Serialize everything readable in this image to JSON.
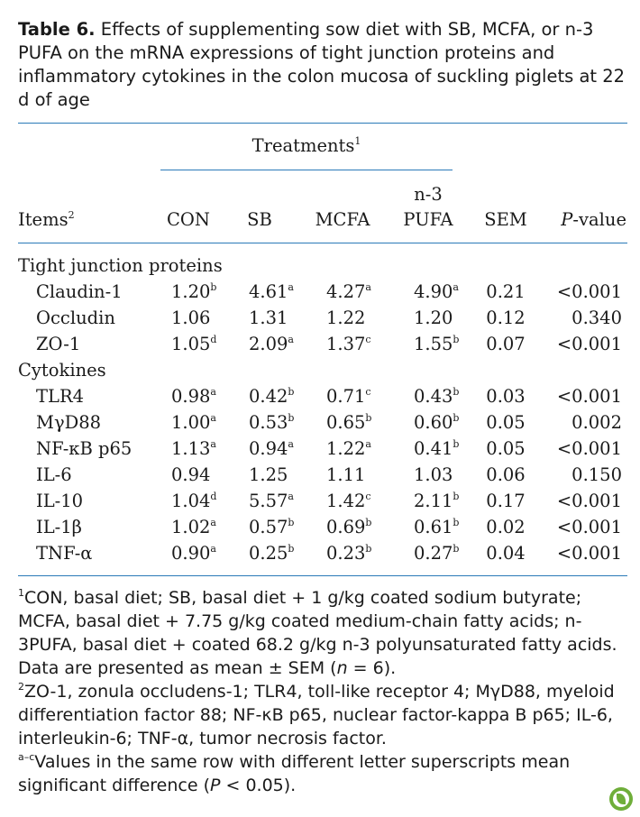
{
  "caption": {
    "label": "Table 6.",
    "text": " Effects of supplementing sow diet with SB, MCFA, or n-3 PUFA on the mRNA expressions of tight junction proteins and inflammatory cytokines in the colon mucosa of suckling piglets at 22 d of age"
  },
  "header": {
    "treatments": "Treatments",
    "treatments_sup": "1",
    "items": "Items",
    "items_sup": "2",
    "col_con": "CON",
    "col_sb": "SB",
    "col_mcfa": "MCFA",
    "col_pufa_top": "n-3",
    "col_pufa_bottom": "PUFA",
    "col_sem": "SEM",
    "col_p_italic": "P",
    "col_p_rest": "-value"
  },
  "sections": [
    {
      "title": "Tight junction proteins",
      "rows": [
        {
          "item": "Claudin-1",
          "con": "1.20",
          "con_sup": "b",
          "sb": "4.61",
          "sb_sup": "a",
          "mcfa": "4.27",
          "mcfa_sup": "a",
          "pufa": "4.90",
          "pufa_sup": "a",
          "sem": "0.21",
          "p": "<0.001"
        },
        {
          "item": "Occludin",
          "con": "1.06",
          "con_sup": "",
          "sb": "1.31",
          "sb_sup": "",
          "mcfa": "1.22",
          "mcfa_sup": "",
          "pufa": "1.20",
          "pufa_sup": "",
          "sem": "0.12",
          "p": "0.340"
        },
        {
          "item": "ZO-1",
          "con": "1.05",
          "con_sup": "d",
          "sb": "2.09",
          "sb_sup": "a",
          "mcfa": "1.37",
          "mcfa_sup": "c",
          "pufa": "1.55",
          "pufa_sup": "b",
          "sem": "0.07",
          "p": "<0.001"
        }
      ]
    },
    {
      "title": "Cytokines",
      "rows": [
        {
          "item": "TLR4",
          "con": "0.98",
          "con_sup": "a",
          "sb": "0.42",
          "sb_sup": "b",
          "mcfa": "0.71",
          "mcfa_sup": "c",
          "pufa": "0.43",
          "pufa_sup": "b",
          "sem": "0.03",
          "p": "<0.001"
        },
        {
          "item": "MγD88",
          "con": "1.00",
          "con_sup": "a",
          "sb": "0.53",
          "sb_sup": "b",
          "mcfa": "0.65",
          "mcfa_sup": "b",
          "pufa": "0.60",
          "pufa_sup": "b",
          "sem": "0.05",
          "p": "0.002"
        },
        {
          "item": "NF-κB p65",
          "con": "1.13",
          "con_sup": "a",
          "sb": "0.94",
          "sb_sup": "a",
          "mcfa": "1.22",
          "mcfa_sup": "a",
          "pufa": "0.41",
          "pufa_sup": "b",
          "sem": "0.05",
          "p": "<0.001"
        },
        {
          "item": "IL-6",
          "con": "0.94",
          "con_sup": "",
          "sb": "1.25",
          "sb_sup": "",
          "mcfa": "1.11",
          "mcfa_sup": "",
          "pufa": "1.03",
          "pufa_sup": "",
          "sem": "0.06",
          "p": "0.150"
        },
        {
          "item": "IL-10",
          "con": "1.04",
          "con_sup": "d",
          "sb": "5.57",
          "sb_sup": "a",
          "mcfa": "1.42",
          "mcfa_sup": "c",
          "pufa": "2.11",
          "pufa_sup": "b",
          "sem": "0.17",
          "p": "<0.001"
        },
        {
          "item": "IL-1β",
          "con": "1.02",
          "con_sup": "a",
          "sb": "0.57",
          "sb_sup": "b",
          "mcfa": "0.69",
          "mcfa_sup": "b",
          "pufa": "0.61",
          "pufa_sup": "b",
          "sem": "0.02",
          "p": "<0.001"
        },
        {
          "item": "TNF-α",
          "con": "0.90",
          "con_sup": "a",
          "sb": "0.25",
          "sb_sup": "b",
          "mcfa": "0.23",
          "mcfa_sup": "b",
          "pufa": "0.27",
          "pufa_sup": "b",
          "sem": "0.04",
          "p": "<0.001"
        }
      ]
    }
  ],
  "footnotes": {
    "f1_sup": "1",
    "f1_a": "CON, basal diet; SB, basal diet + 1 g/kg coated sodium butyrate; MCFA, basal diet + 7.75 g/kg coated medium-chain fatty acids; n-3PUFA, basal diet + coated 68.2 g/kg n-3 polyunsaturated fatty acids. Data are presented as mean ± SEM (",
    "f1_n": "n",
    "f1_b": " = 6).",
    "f2_sup": "2",
    "f2": "ZO-1, zonula occludens-1; TLR4, toll-like receptor 4; MγD88, myeloid differentiation factor 88; NF-κB p65, nuclear factor-kappa B p65; IL-6, interleukin-6; TNF-α, tumor necrosis factor.",
    "f3_sup": "a–c",
    "f3_a": "Values in the same row with different letter superscripts mean significant difference (",
    "f3_p": "P",
    "f3_b": " < 0.05)."
  },
  "colors": {
    "rule": "#2a7ab8",
    "logo": "#6fae3a"
  },
  "icons": {
    "logo": "leaf-logo-icon"
  }
}
